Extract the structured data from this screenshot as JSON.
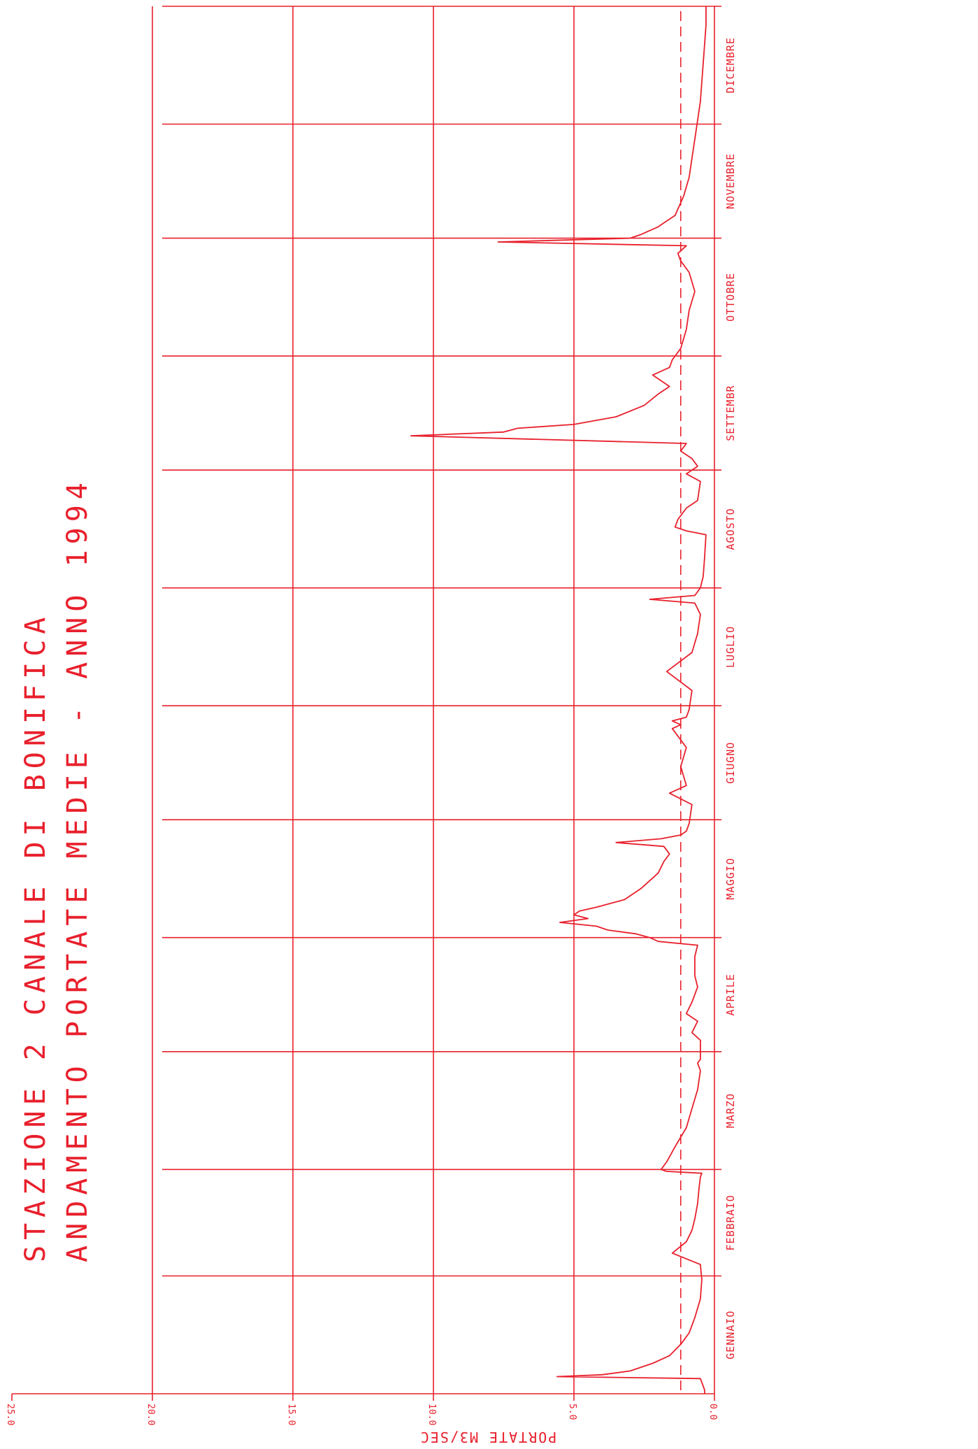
{
  "title_line1": "STAZIONE  2   CANALE DI BONIFICA",
  "title_line2": "ANDAMENTO PORTATE MEDIE  -  ANNO  1994",
  "ylabel": "PORTATE M3/SEC",
  "colors": {
    "plot": "#e8202c",
    "background": "#ffffff"
  },
  "chart_data": {
    "type": "line",
    "title": "STAZIONE  2   CANALE DI BONIFICA / ANDAMENTO PORTATE MEDIE  -  ANNO  1994",
    "xlabel": "",
    "ylabel": "PORTATE M3/SEC",
    "orientation": "rotated 90° (time runs bottom-to-top, flow increases leftward)",
    "ylim": [
      0,
      25
    ],
    "y_ticks": [
      "0.0",
      "5.0",
      "10.0",
      "15.0",
      "20.0",
      "25.0"
    ],
    "x_domain": [
      0,
      365
    ],
    "month_boundaries": [
      0,
      31,
      59,
      90,
      120,
      151,
      181,
      212,
      243,
      273,
      304,
      334,
      365
    ],
    "month_labels": [
      "GENNAIO",
      "FEBBRAIO",
      "MARZO",
      "APRILE",
      "MAGGIO",
      "GIUGNO",
      "LUGLIO",
      "AGOSTO",
      "SETTEMBR",
      "OTTOBRE",
      "NOVEMBRE",
      "DICEMBRE"
    ],
    "grid": true,
    "reference_line": {
      "value": 1.2,
      "style": "dashed"
    },
    "series": [
      {
        "x": [
          0,
          1,
          2,
          3,
          4,
          4.5,
          5,
          6,
          8,
          10,
          13,
          16,
          20,
          25,
          30,
          34,
          37,
          40,
          43,
          46,
          50,
          54,
          57,
          58,
          58.5,
          59,
          61,
          65,
          70,
          75,
          80,
          85,
          87,
          88,
          90,
          93,
          95,
          98,
          100,
          103,
          107,
          110,
          115,
          118,
          119,
          120,
          121,
          122,
          123,
          124,
          125,
          126,
          127,
          128,
          130,
          133,
          137,
          140,
          142,
          144,
          145,
          146,
          147,
          148,
          150,
          155,
          158,
          160,
          165,
          170,
          175,
          176,
          177,
          178,
          180,
          185,
          190,
          195,
          200,
          205,
          208,
          209,
          210,
          212,
          215,
          220,
          226,
          227,
          228,
          230,
          233,
          235,
          240,
          242,
          244,
          246,
          248,
          250,
          252,
          253,
          254,
          255,
          257,
          260,
          263,
          265,
          268,
          270,
          272,
          275,
          280,
          285,
          290,
          295,
          298,
          300,
          302,
          303,
          304,
          305,
          306,
          307,
          308,
          309,
          310,
          315,
          320,
          325,
          330,
          335,
          340,
          345,
          350,
          355,
          360,
          365
        ],
        "y": [
          0.35,
          0.35,
          0.4,
          0.45,
          0.5,
          5.6,
          4.0,
          3.0,
          2.2,
          1.6,
          1.2,
          0.9,
          0.7,
          0.5,
          0.45,
          0.5,
          1.5,
          1.0,
          0.8,
          0.7,
          0.6,
          0.55,
          0.5,
          0.45,
          1.7,
          1.9,
          1.7,
          1.4,
          1.0,
          0.8,
          0.6,
          0.5,
          0.6,
          0.5,
          0.5,
          0.5,
          0.8,
          0.6,
          1.0,
          0.8,
          0.6,
          0.7,
          0.7,
          0.6,
          2.0,
          2.3,
          2.8,
          3.8,
          4.2,
          5.5,
          4.5,
          5.0,
          4.8,
          4.2,
          3.2,
          2.6,
          2.0,
          1.8,
          1.6,
          1.8,
          3.5,
          1.9,
          1.2,
          1.0,
          0.9,
          0.8,
          1.6,
          1.0,
          1.2,
          1.0,
          1.5,
          1.2,
          1.5,
          1.0,
          0.9,
          0.8,
          1.7,
          0.8,
          0.6,
          0.5,
          0.7,
          2.3,
          0.7,
          0.5,
          0.4,
          0.35,
          0.3,
          1.0,
          1.4,
          1.3,
          1.0,
          0.6,
          0.5,
          1.0,
          0.6,
          0.8,
          1.2,
          1.0,
          10.8,
          7.5,
          7.0,
          5.0,
          3.5,
          2.5,
          2.0,
          1.6,
          2.2,
          1.6,
          1.5,
          1.2,
          1.0,
          0.9,
          0.7,
          0.9,
          1.2,
          1.3,
          1.0,
          7.7,
          3.0,
          2.6,
          2.3,
          2.0,
          1.8,
          1.6,
          1.4,
          1.1,
          0.9,
          0.8,
          0.7,
          0.6,
          0.5,
          0.45,
          0.4,
          0.35,
          0.3,
          0.3
        ]
      }
    ]
  }
}
